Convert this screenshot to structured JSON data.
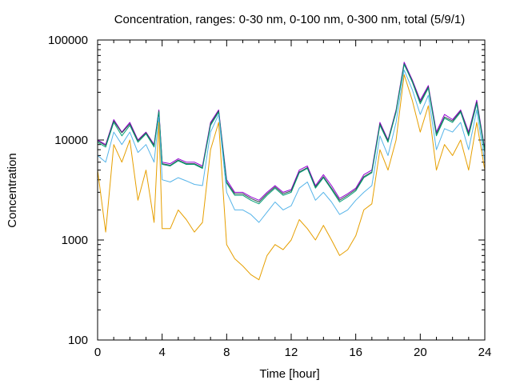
{
  "chart_data": {
    "type": "line",
    "title": "Concentration, ranges: 0-30 nm, 0-100 nm, 0-300 nm, total (5/9/1)",
    "xlabel": "Time [hour]",
    "ylabel": "Concentration",
    "xlim": [
      0,
      24
    ],
    "ylim": [
      100,
      100000
    ],
    "yscale": "log",
    "grid": false,
    "legend": "none",
    "x_ticks": [
      "0",
      "4",
      "8",
      "12",
      "16",
      "20",
      "24"
    ],
    "y_ticks": [
      "100",
      "1000",
      "10000",
      "100000"
    ],
    "x": [
      0,
      0.5,
      1,
      1.5,
      2,
      2.5,
      3,
      3.5,
      3.8,
      4,
      4.5,
      5,
      5.5,
      6,
      6.5,
      7,
      7.5,
      8,
      8.5,
      9,
      9.5,
      10,
      10.5,
      11,
      11.5,
      12,
      12.5,
      13,
      13.5,
      14,
      14.5,
      15,
      15.5,
      16,
      16.5,
      17,
      17.5,
      18,
      18.5,
      19,
      19.5,
      20,
      20.5,
      21,
      21.5,
      22,
      22.5,
      23,
      23.5,
      24
    ],
    "series": [
      {
        "color": "#9400d3",
        "values": [
          10000,
          9000,
          16000,
          12000,
          15000,
          10000,
          12000,
          9000,
          20000,
          6000,
          5800,
          6500,
          6000,
          6000,
          5500,
          15000,
          20000,
          4000,
          3000,
          3000,
          2700,
          2500,
          3000,
          3500,
          3000,
          3200,
          5000,
          5500,
          3500,
          4500,
          3500,
          2600,
          2900,
          3300,
          4500,
          5000,
          15000,
          10000,
          20000,
          60000,
          40000,
          25000,
          35000,
          12000,
          18000,
          16000,
          20000,
          12000,
          25000,
          8000
        ]
      },
      {
        "color": "#2f4f4f",
        "values": [
          9800,
          8800,
          15500,
          11800,
          14500,
          9800,
          11800,
          8800,
          19500,
          5800,
          5600,
          6300,
          5800,
          5800,
          5300,
          14500,
          19500,
          3800,
          2900,
          2900,
          2600,
          2400,
          2900,
          3400,
          2900,
          3100,
          4800,
          5300,
          3400,
          4300,
          3300,
          2500,
          2800,
          3200,
          4300,
          4800,
          14500,
          9800,
          19500,
          58000,
          39000,
          24000,
          34000,
          11500,
          17000,
          15500,
          19500,
          11500,
          24000,
          7800
        ]
      },
      {
        "color": "#009e73",
        "values": [
          9500,
          8500,
          15000,
          11000,
          14000,
          9500,
          11500,
          8500,
          19000,
          5700,
          5500,
          6200,
          5700,
          5700,
          5200,
          14000,
          19000,
          3700,
          2800,
          2800,
          2500,
          2300,
          2800,
          3300,
          2800,
          3000,
          4700,
          5200,
          3300,
          4200,
          3200,
          2400,
          2700,
          3100,
          4200,
          4700,
          14000,
          9500,
          19000,
          57000,
          38000,
          23000,
          33000,
          11000,
          16500,
          15000,
          19000,
          11000,
          23000,
          7500
        ]
      },
      {
        "color": "#56b4e9",
        "values": [
          7000,
          6000,
          12000,
          9000,
          12000,
          7500,
          9000,
          6000,
          17000,
          4000,
          3800,
          4200,
          3900,
          3600,
          3500,
          12000,
          18000,
          3000,
          2000,
          2000,
          1800,
          1500,
          1900,
          2400,
          2000,
          2200,
          3300,
          3800,
          2500,
          3000,
          2400,
          1800,
          2000,
          2500,
          3000,
          3500,
          11000,
          7000,
          15000,
          50000,
          32000,
          18000,
          28000,
          8000,
          13000,
          12000,
          15000,
          8000,
          20000,
          6000
        ]
      },
      {
        "color": "#e69f00",
        "values": [
          5000,
          1200,
          9000,
          6000,
          10000,
          2500,
          5000,
          1500,
          15000,
          1300,
          1300,
          2000,
          1600,
          1200,
          1500,
          8000,
          15000,
          900,
          650,
          550,
          450,
          400,
          700,
          900,
          800,
          1000,
          1600,
          1300,
          1000,
          1400,
          1000,
          700,
          800,
          1100,
          2000,
          2300,
          8000,
          5000,
          10000,
          45000,
          25000,
          12000,
          22000,
          5000,
          9000,
          7000,
          10000,
          5000,
          15000,
          5000
        ]
      }
    ]
  }
}
